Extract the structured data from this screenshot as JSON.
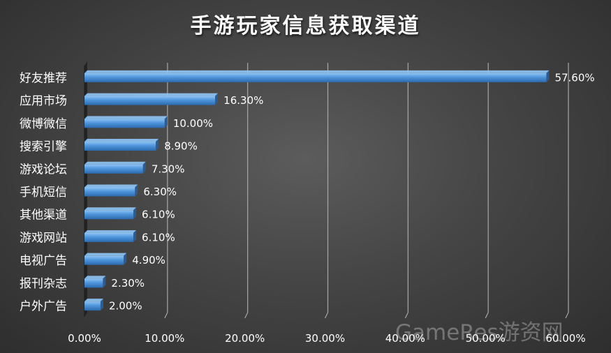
{
  "title": "手游玩家信息获取渠道",
  "watermark": "GameRes游资网",
  "colors": {
    "bar_top": "#8fc4f5",
    "bar_mid": "#4f95db",
    "bar_bottom": "#2b6aaf",
    "bar_end": "#2a5d96",
    "text": "#ffffff",
    "grid": "#a8a8a8"
  },
  "chart_data": {
    "type": "bar",
    "orientation": "horizontal",
    "title": "手游玩家信息获取渠道",
    "categories": [
      "好友推荐",
      "应用市场",
      "微博微信",
      "搜索引擎",
      "游戏论坛",
      "手机短信",
      "其他渠道",
      "游戏网站",
      "电视广告",
      "报刊杂志",
      "户外广告"
    ],
    "values": [
      57.6,
      16.3,
      10.0,
      8.9,
      7.3,
      6.3,
      6.1,
      6.1,
      4.9,
      2.3,
      2.0
    ],
    "value_labels": [
      "57.60%",
      "16.30%",
      "10.00%",
      "8.90%",
      "7.30%",
      "6.30%",
      "6.10%",
      "6.10%",
      "4.90%",
      "2.30%",
      "2.00%"
    ],
    "xticks": [
      "0.00%",
      "10.00%",
      "20.00%",
      "30.00%",
      "40.00%",
      "50.00%",
      "60.00%"
    ],
    "xlim": [
      0,
      60
    ],
    "xlabel": "",
    "ylabel": "",
    "grid": "vertical",
    "legend": "none"
  }
}
